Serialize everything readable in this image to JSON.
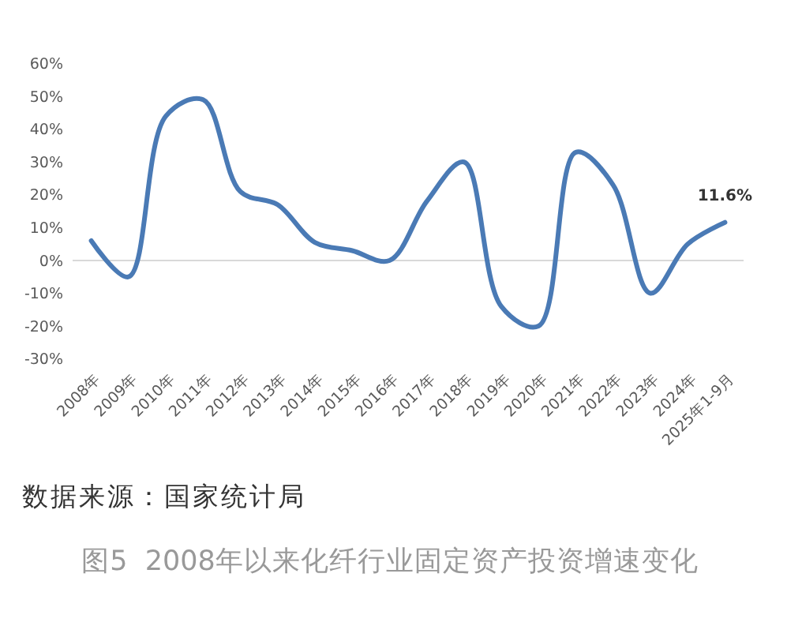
{
  "chart_data": {
    "type": "line",
    "title": "图5  2008年以来化纤行业固定资产投资增速变化",
    "annotations": [
      "数据来源：国家统计局"
    ],
    "categories": [
      "2008年",
      "2009年",
      "2010年",
      "2011年",
      "2012年",
      "2013年",
      "2014年",
      "2015年",
      "2016年",
      "2017年",
      "2018年",
      "2019年",
      "2020年",
      "2021年",
      "2022年",
      "2023年",
      "2024年",
      "2025年1-9月"
    ],
    "series": [
      {
        "color": "#4a7ab5",
        "values": [
          6,
          -5,
          44,
          49,
          21,
          17,
          5.5,
          3,
          0,
          18,
          30,
          -14,
          -20,
          33,
          23,
          -10,
          5,
          11.6
        ],
        "value_labels": [
          null,
          null,
          null,
          null,
          null,
          null,
          null,
          null,
          null,
          null,
          null,
          null,
          null,
          null,
          null,
          null,
          null,
          "11.6%"
        ]
      }
    ],
    "ylim": [
      -30,
      60
    ],
    "yticks": [
      {
        "value": 60,
        "label": "60%"
      },
      {
        "value": 50,
        "label": "50%"
      },
      {
        "value": 40,
        "label": "40%"
      },
      {
        "value": 30,
        "label": "30%"
      },
      {
        "value": 20,
        "label": "20%"
      },
      {
        "value": 10,
        "label": "10%"
      },
      {
        "value": 0,
        "label": "0%"
      },
      {
        "value": -10,
        "label": "-10%"
      },
      {
        "value": -20,
        "label": "-20%"
      },
      {
        "value": -30,
        "label": "-30%"
      }
    ]
  }
}
